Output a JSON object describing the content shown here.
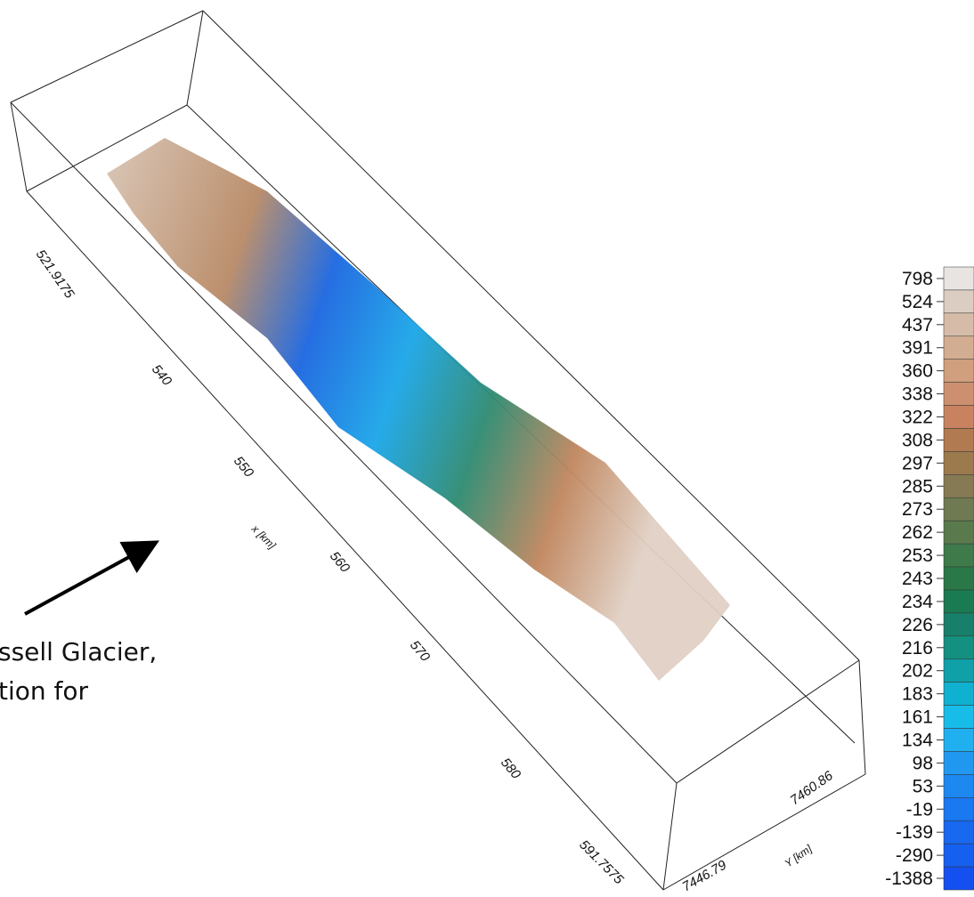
{
  "axes": {
    "x_ticks": [
      "521.9175",
      "540",
      "550",
      "560",
      "570",
      "580",
      "591.7575"
    ],
    "x_label": "x [km]",
    "y_ticks": [
      "7446.79",
      "7460.86"
    ],
    "y_label": "Y [km]"
  },
  "colorbar": {
    "labels": [
      "798",
      "524",
      "437",
      "391",
      "360",
      "338",
      "322",
      "308",
      "297",
      "285",
      "273",
      "262",
      "253",
      "243",
      "234",
      "226",
      "216",
      "202",
      "183",
      "161",
      "134",
      "98",
      "53",
      "-19",
      "-139",
      "-290",
      "-1388"
    ]
  },
  "annotation": {
    "lines": [
      "ssell Glacier,",
      "tion for"
    ]
  }
}
